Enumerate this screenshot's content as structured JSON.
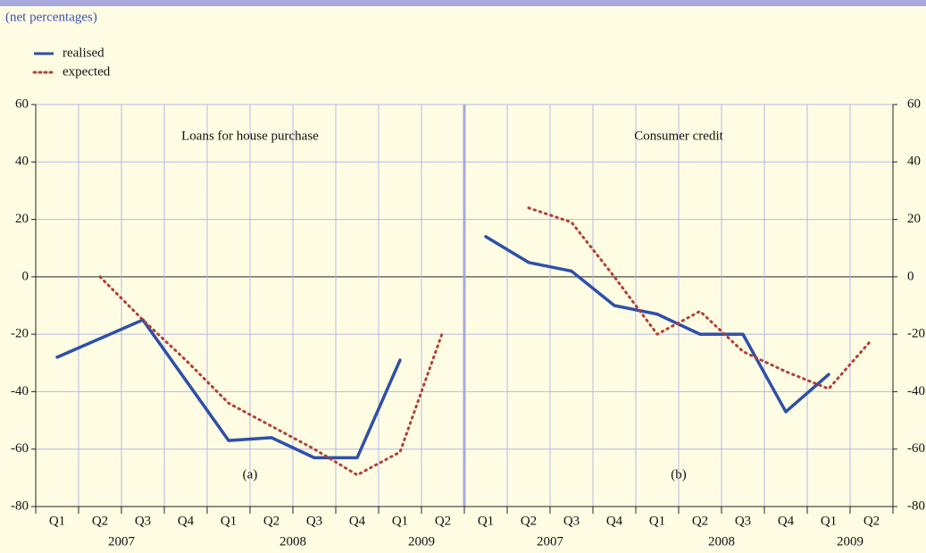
{
  "chart_data": [
    {
      "type": "line",
      "subtitle": "(net percentages)",
      "title": "Loans for house purchase",
      "annotation": "(a)",
      "categories": [
        "Q1",
        "Q2",
        "Q3",
        "Q4",
        "Q1",
        "Q2",
        "Q3",
        "Q4",
        "Q1",
        "Q2"
      ],
      "year_groups": [
        "2007",
        "2008",
        "2009"
      ],
      "series": [
        {
          "name": "realised",
          "color": "#2f4fa8",
          "style": "solid",
          "values": [
            -28,
            -21.5,
            -15,
            -36,
            -57,
            -56,
            -63,
            -63,
            -29,
            null
          ]
        },
        {
          "name": "expected",
          "color": "#b0403a",
          "style": "dotted",
          "values": [
            null,
            0,
            -15,
            -29,
            -44,
            -52,
            -60,
            -69,
            -61,
            -19
          ]
        }
      ],
      "ylim": [
        -80,
        60
      ],
      "yticks": [
        -80,
        -60,
        -40,
        -20,
        0,
        20,
        40,
        60
      ],
      "grid": true
    },
    {
      "type": "line",
      "title": "Consumer credit",
      "annotation": "(b)",
      "categories": [
        "Q1",
        "Q2",
        "Q3",
        "Q4",
        "Q1",
        "Q2",
        "Q3",
        "Q4",
        "Q1",
        "Q2"
      ],
      "year_groups": [
        "2007",
        "2008",
        "2009"
      ],
      "series": [
        {
          "name": "realised",
          "color": "#2f4fa8",
          "style": "solid",
          "values": [
            14,
            5,
            2,
            -10,
            -13,
            -20,
            -20,
            -47,
            -34,
            null
          ]
        },
        {
          "name": "expected",
          "color": "#b0403a",
          "style": "dotted",
          "values": [
            null,
            24,
            19,
            0,
            -20,
            -12,
            -26,
            -33,
            -39,
            -22
          ]
        }
      ],
      "ylim": [
        -80,
        60
      ],
      "yticks": [
        -80,
        -60,
        -40,
        -20,
        0,
        20,
        40,
        60
      ],
      "grid": true
    }
  ]
}
